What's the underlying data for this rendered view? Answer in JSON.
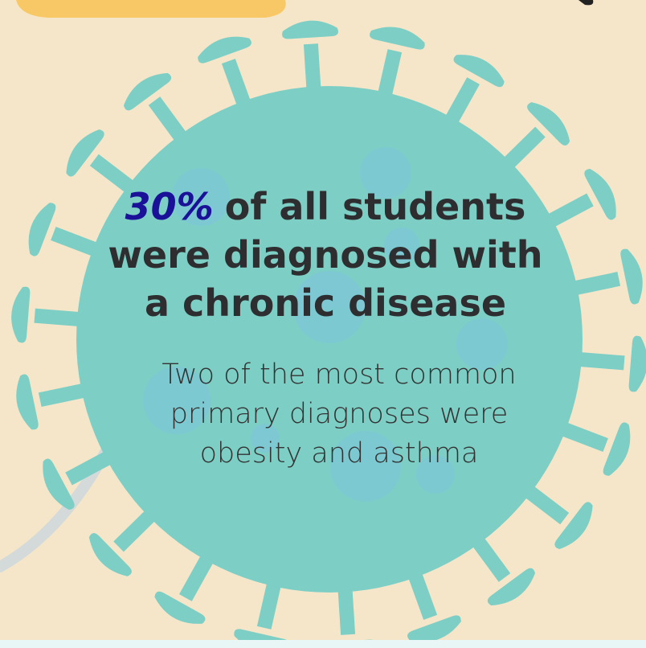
{
  "headline": {
    "highlight": "30%",
    "lines": [
      "of all students",
      "were diagnosed with",
      "a chronic disease"
    ]
  },
  "body": {
    "lines": [
      "Two of the most common",
      "primary diagnoses were",
      "obesity and asthma"
    ]
  }
}
